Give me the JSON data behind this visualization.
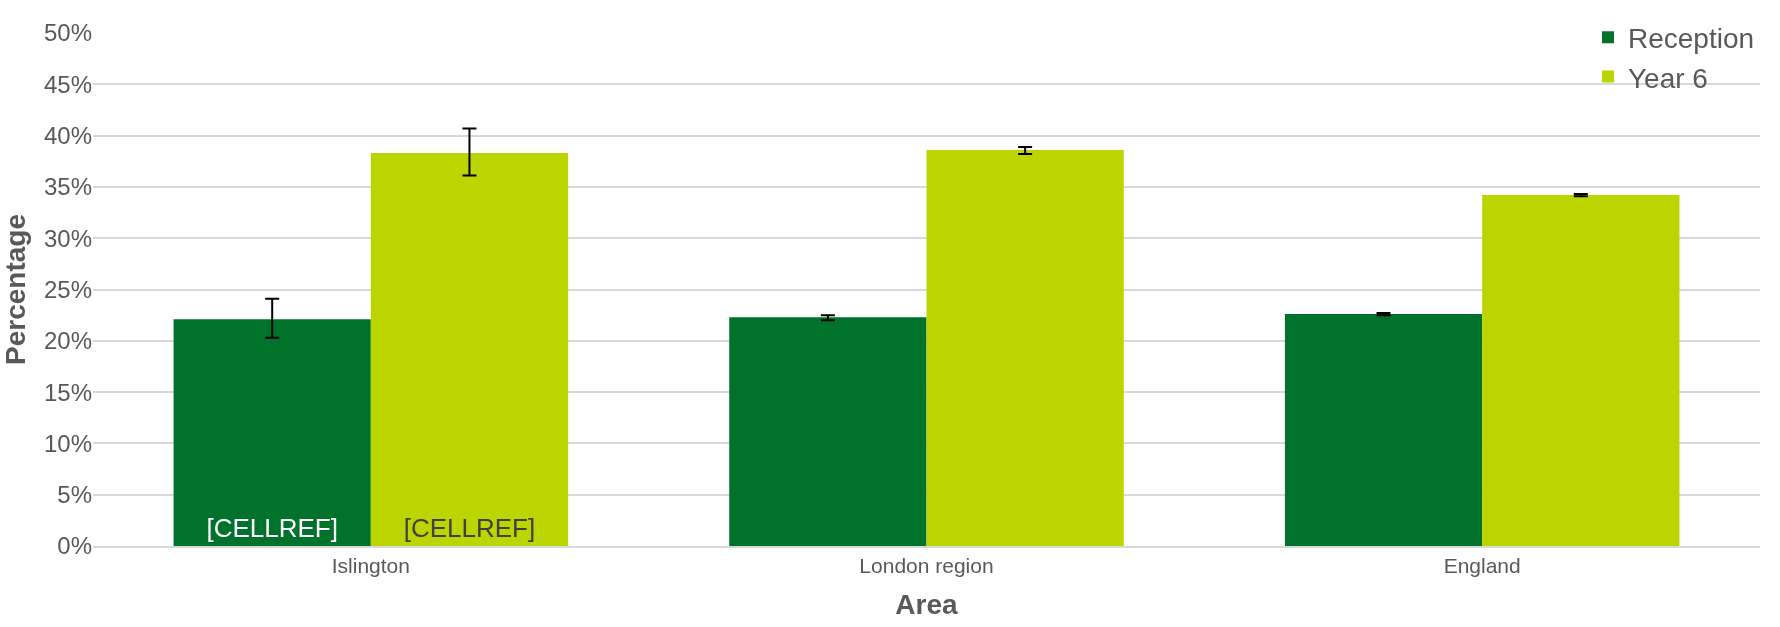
{
  "chart_data": {
    "type": "bar",
    "xlabel": "Area",
    "ylabel": "Percentage",
    "categories": [
      "Islington",
      "London region",
      "England"
    ],
    "series": [
      {
        "name": "Reception",
        "color": "#00722b",
        "values": [
          22.1,
          22.3,
          22.6
        ],
        "errors": [
          [
            20.3,
            24.1
          ],
          [
            22.0,
            22.5
          ],
          [
            22.5,
            22.7
          ]
        ],
        "value_labels": [
          "[CELLREF]",
          null,
          null
        ]
      },
      {
        "name": "Year 6",
        "color": "#bcd400",
        "values": [
          38.3,
          38.6,
          34.2
        ],
        "errors": [
          [
            36.1,
            40.7
          ],
          [
            38.2,
            38.9
          ],
          [
            34.1,
            34.3
          ]
        ],
        "value_labels": [
          "[CELLREF]",
          null,
          null
        ]
      }
    ],
    "ylim": [
      0,
      50
    ],
    "yticks": [
      {
        "value": 0,
        "label": "0%"
      },
      {
        "value": 5,
        "label": "5%"
      },
      {
        "value": 10,
        "label": "10%"
      },
      {
        "value": 15,
        "label": "15%"
      },
      {
        "value": 20,
        "label": "20%"
      },
      {
        "value": 25,
        "label": "25%"
      },
      {
        "value": 30,
        "label": "30%"
      },
      {
        "value": 35,
        "label": "35%"
      },
      {
        "value": 40,
        "label": "40%"
      },
      {
        "value": 45,
        "label": "45%"
      },
      {
        "value": 50,
        "label": "50%"
      }
    ],
    "grid": "y",
    "legend": "top right"
  }
}
